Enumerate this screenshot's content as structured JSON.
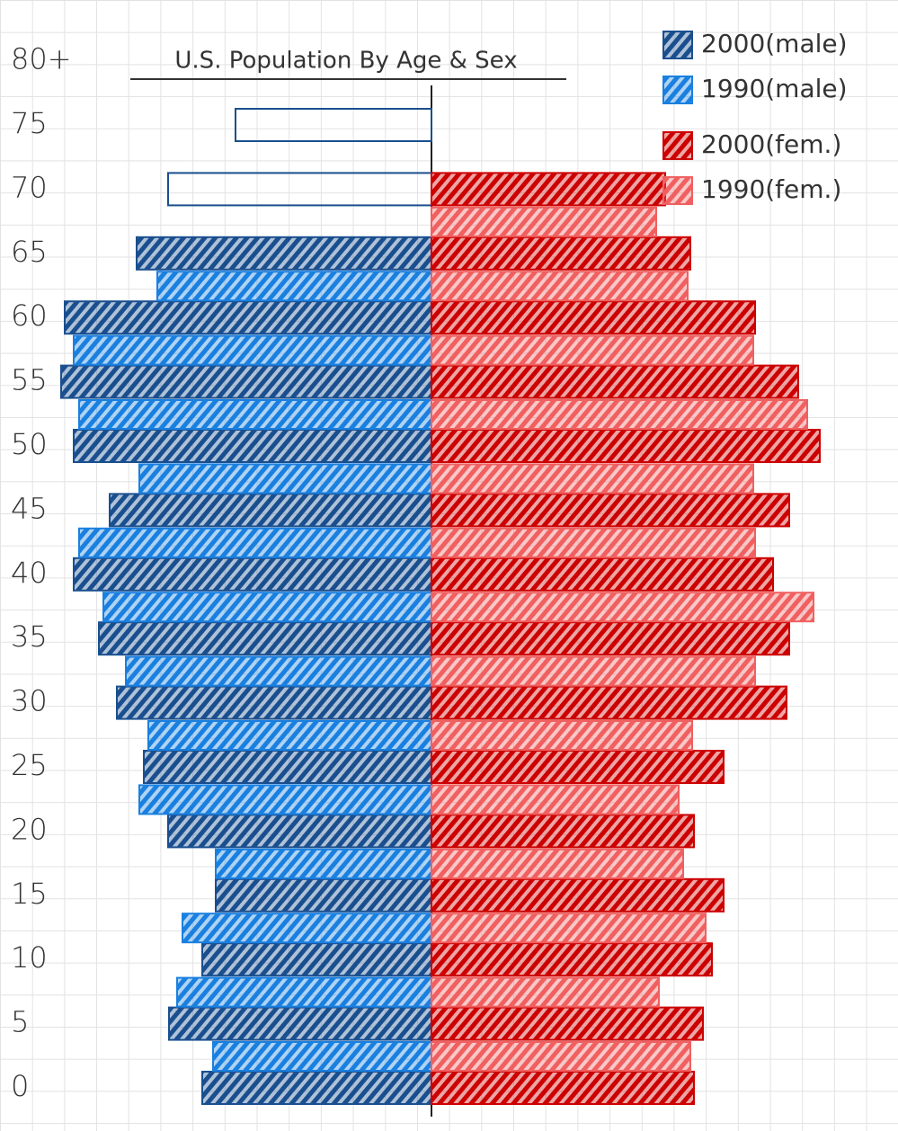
{
  "chart_data": {
    "type": "pyramid",
    "title": "U.S. Population By Age & Sex",
    "categories": [
      "0",
      "5",
      "10",
      "15",
      "20",
      "25",
      "30",
      "35",
      "40",
      "45",
      "50",
      "55",
      "60",
      "65",
      "70",
      "75",
      "80+"
    ],
    "xlim": [
      0,
      420
    ],
    "series": [
      {
        "name": "2000(male)",
        "color": "#1a4f8f",
        "side": "left",
        "outline_categories": [
          "70",
          "75"
        ],
        "values": [
          255,
          292,
          255,
          240,
          293,
          320,
          350,
          370,
          398,
          358,
          398,
          412,
          408,
          328,
          293,
          218,
          null
        ]
      },
      {
        "name": "1990(male)",
        "color": "#1a80e0",
        "side": "left",
        "values": [
          243,
          283,
          277,
          240,
          325,
          315,
          340,
          365,
          392,
          325,
          392,
          398,
          305,
          null,
          null,
          null,
          null
        ]
      },
      {
        "name": "2000(fem.)",
        "color": "#cc0000",
        "side": "right",
        "values": [
          292,
          302,
          312,
          325,
          292,
          325,
          395,
          398,
          380,
          398,
          432,
          408,
          360,
          288,
          260,
          null,
          null
        ]
      },
      {
        "name": "1990(fem.)",
        "color": "#f06060",
        "side": "right",
        "values": [
          288,
          253,
          305,
          280,
          275,
          290,
          360,
          425,
          360,
          358,
          418,
          358,
          285,
          250,
          null,
          null,
          null
        ]
      }
    ]
  }
}
